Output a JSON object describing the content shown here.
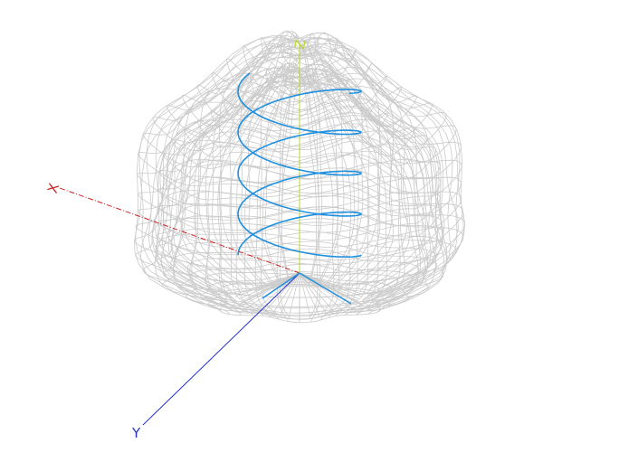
{
  "scene": {
    "background": "#ffffff",
    "mesh_color": "#cbcbcb",
    "helix_color": "#1e90e0"
  },
  "axes": {
    "x": {
      "label": "X",
      "color": "#cc2222"
    },
    "y": {
      "label": "Y",
      "color": "#2233cc"
    },
    "z": {
      "label": "Z",
      "color": "#b8d630"
    }
  }
}
